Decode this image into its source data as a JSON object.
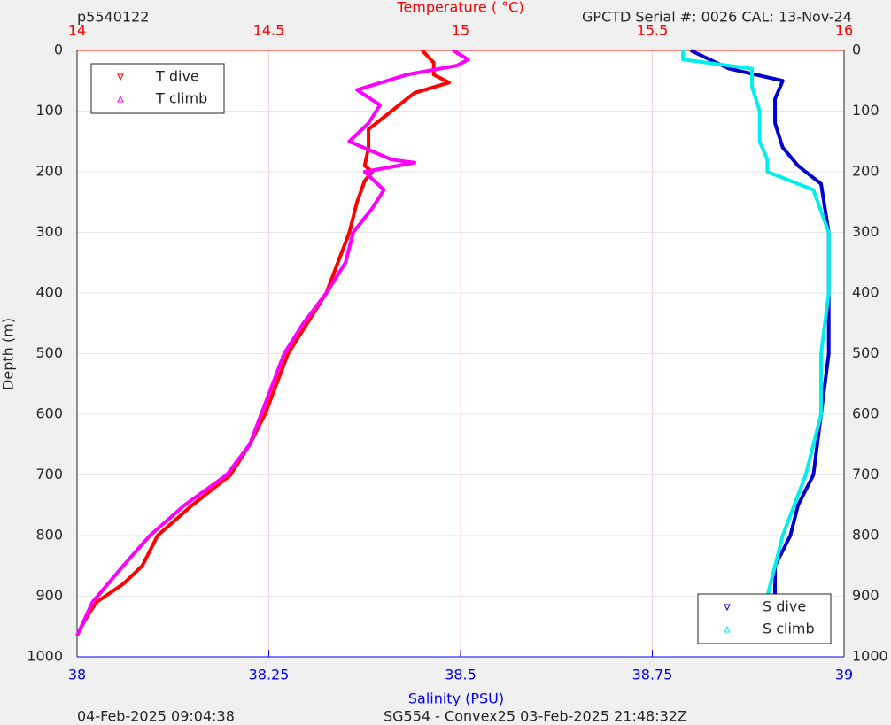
{
  "chart_data": {
    "type": "line",
    "header_left": "p5540122",
    "header_right": "GPCTD Serial #: 0026 CAL: 13-Nov-24",
    "footer_left": "04-Feb-2025 09:04:38",
    "footer_right": "SG554 - Convex25 03-Feb-2025 21:48:32Z",
    "xlabel": "Salinity (PSU)",
    "x2label": "Temperature (    °C)",
    "ylabel": "Depth (m)",
    "xlim": [
      38,
      39
    ],
    "xticks": [
      38,
      38.25,
      38.5,
      38.75,
      39
    ],
    "xcolor": "#0000ff",
    "x2lim": [
      14,
      16
    ],
    "x2ticks": [
      14,
      14.5,
      15,
      15.5,
      16
    ],
    "x2color": "#ff0000",
    "ylim": [
      0,
      1000
    ],
    "yticks": [
      0,
      100,
      200,
      300,
      400,
      500,
      600,
      700,
      800,
      900,
      1000
    ],
    "y_reversed": true,
    "grid": true,
    "series": [
      {
        "name": "T dive",
        "color": "#ff0000",
        "marker": "down",
        "axis": "x2",
        "legend": "upper left",
        "x": [
          14.9,
          14.93,
          14.93,
          14.97,
          14.88,
          14.82,
          14.76,
          14.76,
          14.75,
          14.77,
          14.75,
          14.73,
          14.71,
          14.68,
          14.65,
          14.6,
          14.55,
          14.52,
          14.49,
          14.45,
          14.4,
          14.3,
          14.21,
          14.17,
          14.12,
          14.05,
          14.02,
          14.0
        ],
        "y": [
          0,
          20,
          40,
          53,
          70,
          100,
          130,
          160,
          190,
          200,
          215,
          250,
          300,
          350,
          400,
          450,
          500,
          550,
          600,
          650,
          700,
          750,
          800,
          850,
          880,
          910,
          940,
          965
        ]
      },
      {
        "name": "T climb",
        "color": "#ff00ff",
        "marker": "up",
        "axis": "x2",
        "legend": "upper left",
        "x": [
          14.98,
          15.02,
          14.99,
          14.86,
          14.73,
          14.79,
          14.76,
          14.71,
          14.82,
          14.88,
          14.75,
          14.8,
          14.77,
          14.72,
          14.7,
          14.65,
          14.59,
          14.54,
          14.51,
          14.48,
          14.45,
          14.39,
          14.28,
          14.19,
          14.12,
          14.08,
          14.04,
          14.0
        ],
        "y": [
          0,
          15,
          25,
          40,
          65,
          90,
          120,
          150,
          180,
          185,
          200,
          230,
          260,
          300,
          350,
          400,
          450,
          500,
          550,
          600,
          650,
          700,
          750,
          800,
          850,
          880,
          910,
          965
        ]
      },
      {
        "name": "S dive",
        "color": "#0000cc",
        "marker": "down",
        "axis": "x",
        "legend": "lower right",
        "x": [
          38.8,
          38.85,
          38.92,
          38.91,
          38.91,
          38.92,
          38.94,
          38.97,
          38.98,
          38.98,
          38.98,
          38.97,
          38.96,
          38.94,
          38.93,
          38.91,
          38.91,
          38.9
        ],
        "y": [
          0,
          30,
          50,
          80,
          120,
          160,
          190,
          220,
          300,
          400,
          500,
          600,
          700,
          750,
          800,
          850,
          900,
          965
        ]
      },
      {
        "name": "S climb",
        "color": "#00eeee",
        "marker": "up",
        "axis": "x",
        "legend": "lower right",
        "x": [
          38.79,
          38.79,
          38.88,
          38.88,
          38.89,
          38.89,
          38.9,
          38.9,
          38.96,
          38.98,
          38.98,
          38.97,
          38.97,
          38.95,
          38.92,
          38.91,
          38.9,
          38.9
        ],
        "y": [
          0,
          15,
          30,
          60,
          100,
          150,
          180,
          200,
          230,
          300,
          400,
          500,
          600,
          700,
          800,
          850,
          900,
          965
        ]
      }
    ]
  }
}
